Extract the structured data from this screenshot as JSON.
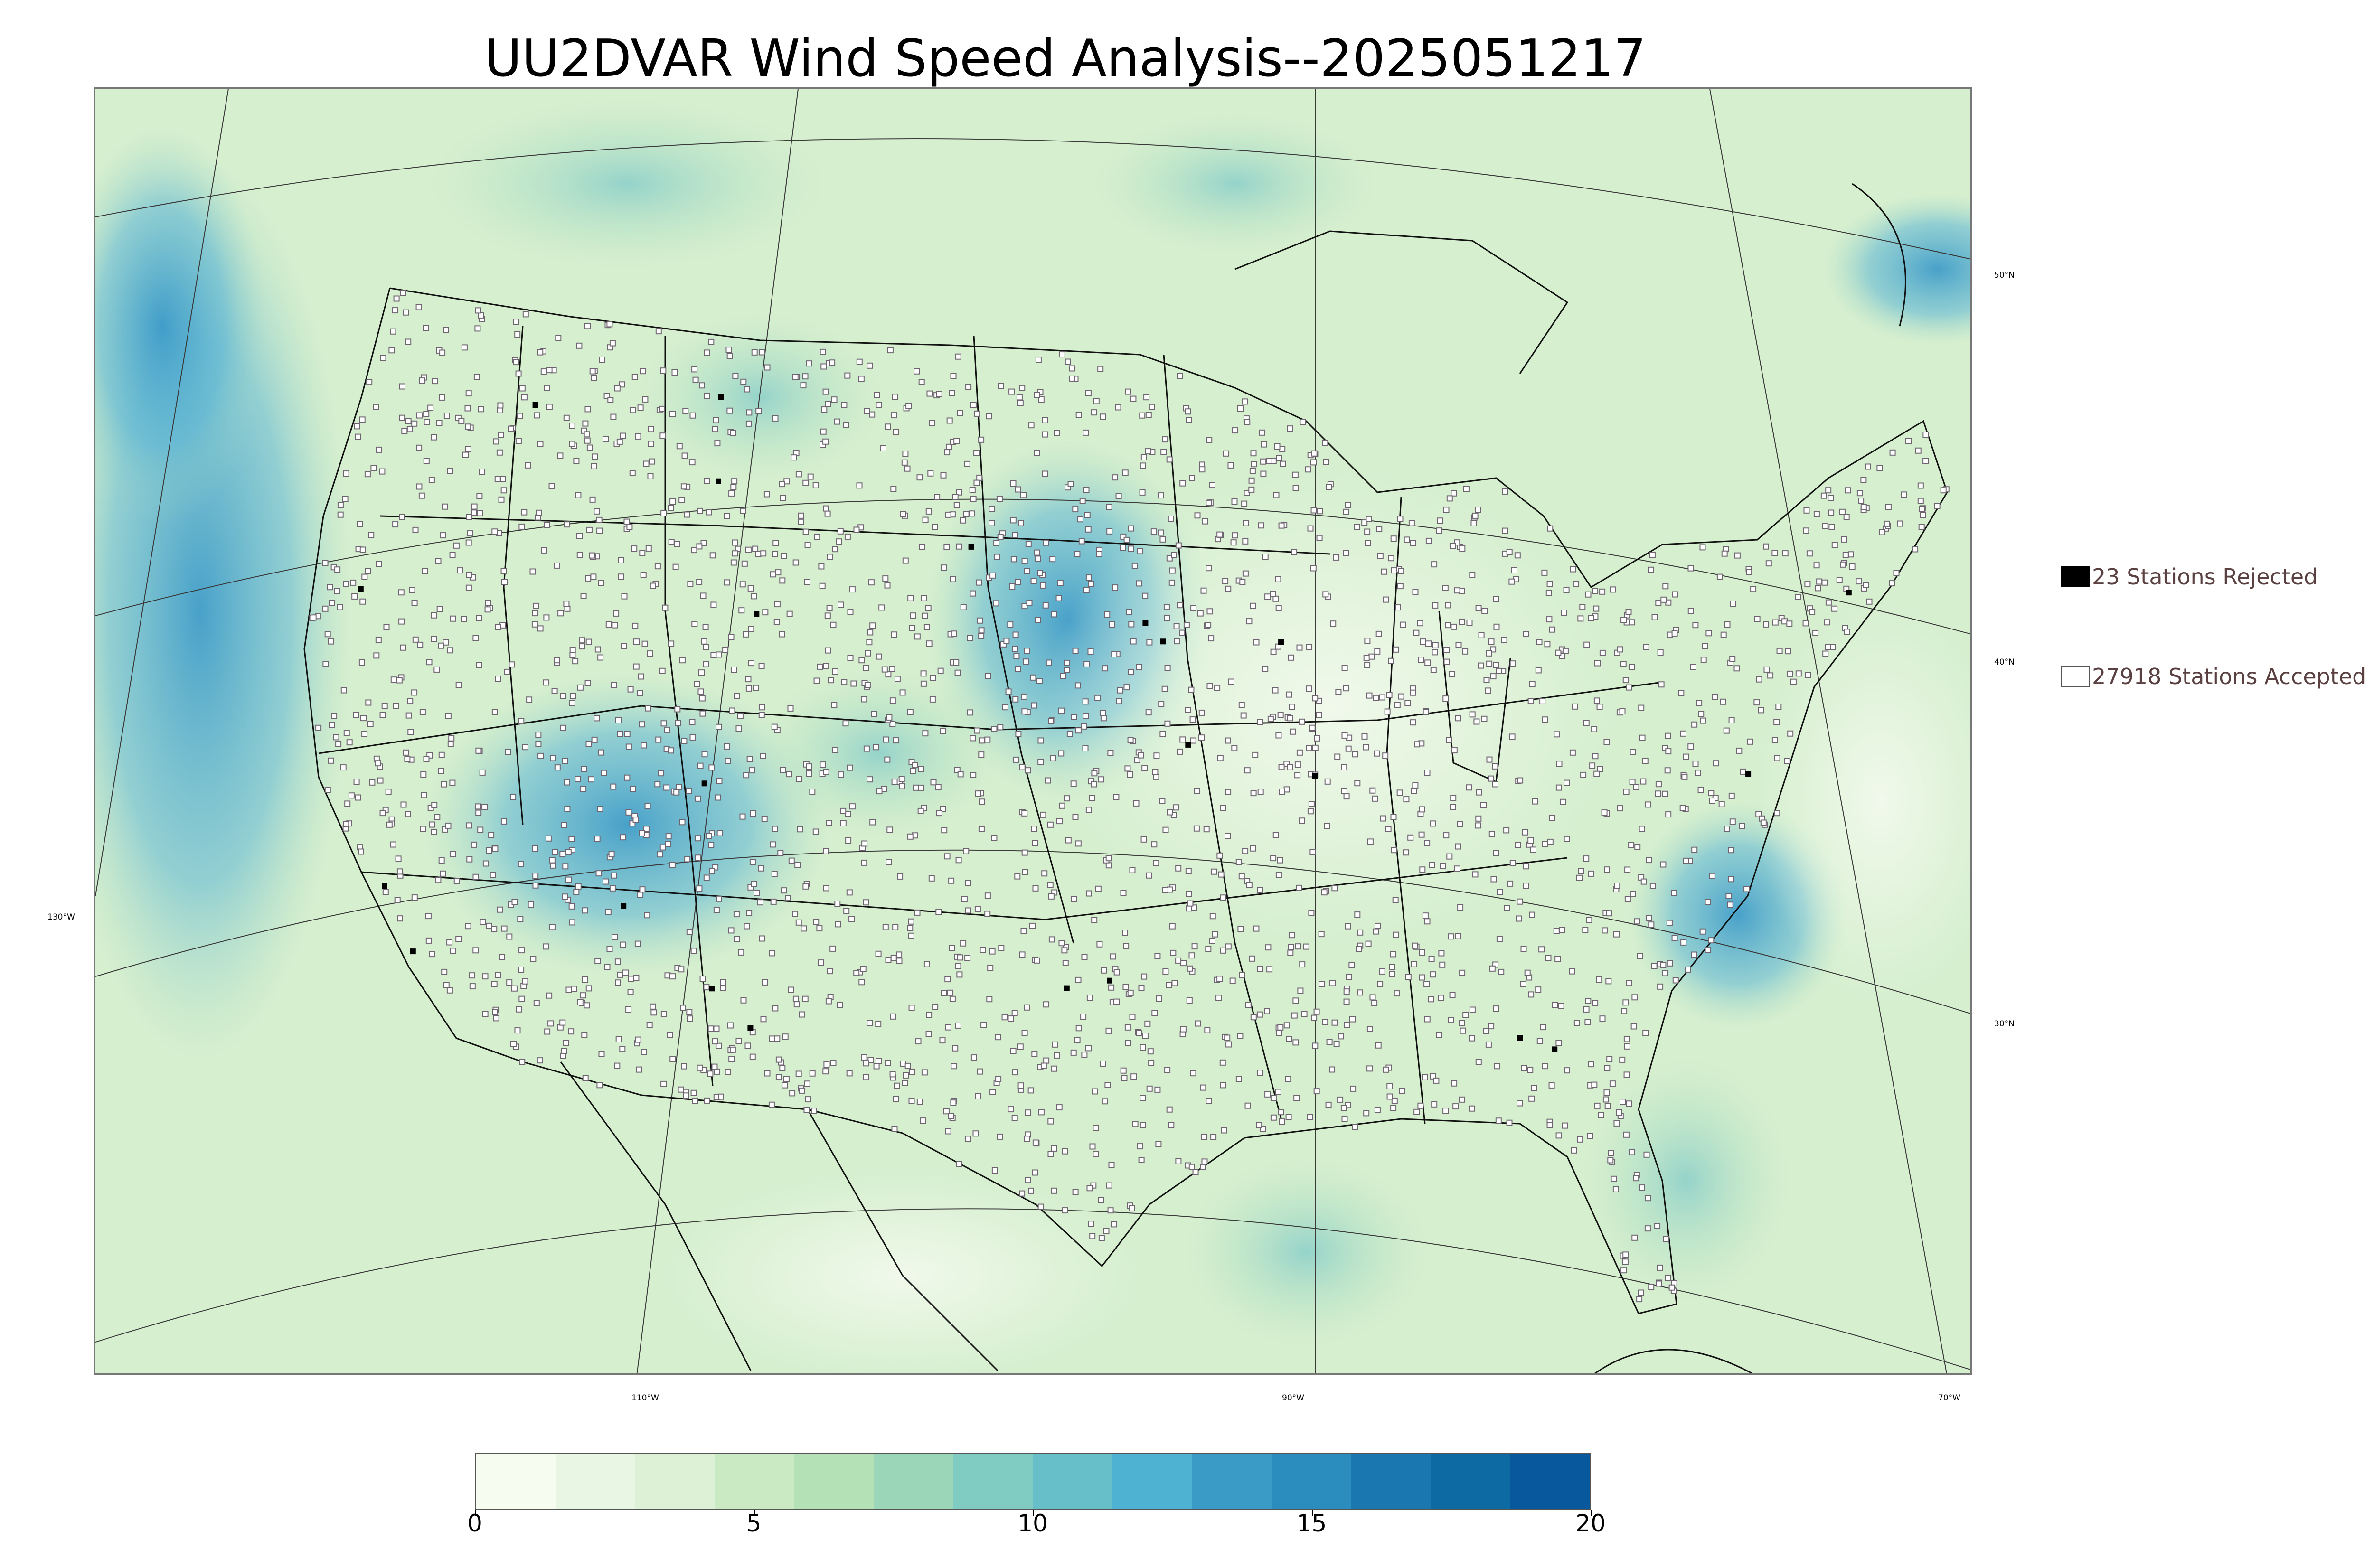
{
  "title": "UU2DVAR Wind Speed Analysis--2025051217",
  "graticule": {
    "lon_labels": [
      "130°W",
      "110°W",
      "90°W",
      "70°W"
    ],
    "lat_labels": [
      "50°N",
      "40°N",
      "30°N"
    ]
  },
  "legend": {
    "rejected": {
      "label": "23 Stations Rejected",
      "color": "#000000"
    },
    "accepted": {
      "label": "27918 Stations Accepted",
      "color": "#ffffff"
    }
  },
  "colorbar": {
    "variable": "wind speed",
    "min": 0,
    "max": 20,
    "ticks": [
      "0",
      "5",
      "10",
      "15",
      "20"
    ],
    "colors": [
      "#f7fcf0",
      "#eaf6e4",
      "#ddf1d6",
      "#c9eac2",
      "#b4e1b6",
      "#9bd6b9",
      "#80cbc2",
      "#66bfc9",
      "#4eb3d3",
      "#3a9cc6",
      "#2b8cbe",
      "#1a77b0",
      "#0d6aa3",
      "#08589e"
    ]
  },
  "colors": {
    "land_base": "#e4f3dc",
    "ocean_base": "#cfeccb",
    "strong_wind": "#3d9fcd",
    "boundary": "#000000",
    "station_accepted_outline": "#6e6470"
  }
}
